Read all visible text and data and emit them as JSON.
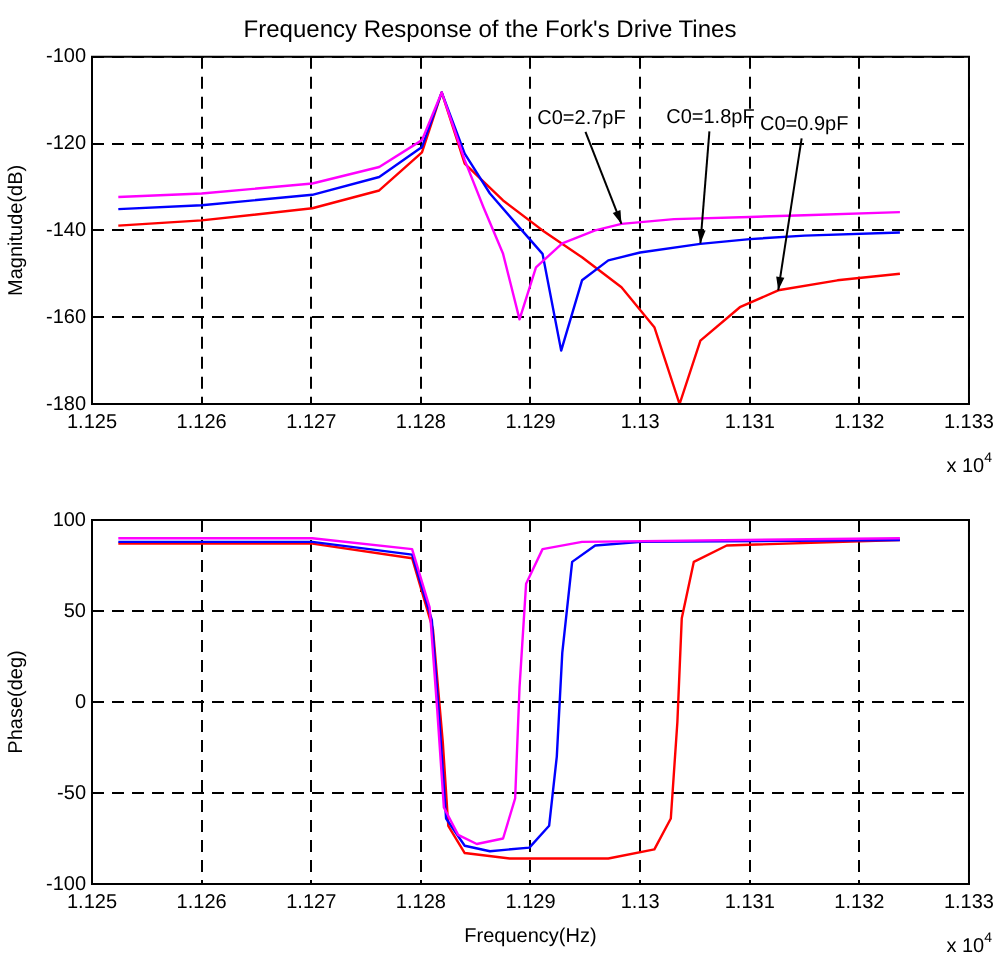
{
  "chart_data": [
    {
      "type": "line",
      "title": "Frequency Response of the Fork's Drive Tines",
      "ylabel": "Magnitude(dB)",
      "xlim": [
        1.125,
        1.133
      ],
      "xticks": [
        1.125,
        1.126,
        1.127,
        1.128,
        1.129,
        1.13,
        1.131,
        1.132,
        1.133
      ],
      "ylim": [
        -180,
        -100
      ],
      "yticks": [
        -180,
        -160,
        -140,
        -120,
        -100
      ],
      "grid": true,
      "legend": false,
      "marker": "none",
      "line_style": "solid",
      "series": [
        {
          "color": "#ff0000",
          "x": [
            1.12524,
            1.126,
            1.12701,
            1.12762,
            1.12801,
            1.12819,
            1.1284,
            1.12875,
            1.12911,
            1.12947,
            1.12983,
            1.13013,
            1.13036,
            1.13055,
            1.13091,
            1.13126,
            1.1318,
            1.13237
          ],
          "values": [
            -138.9,
            -137.7,
            -134.9,
            -130.8,
            -122,
            -108.2,
            -124.6,
            -133.1,
            -140,
            -146.2,
            -153.1,
            -162.3,
            -180,
            -165.4,
            -157.7,
            -153.8,
            -151.5,
            -150
          ]
        },
        {
          "color": "#0000ff",
          "x": [
            1.12524,
            1.126,
            1.12701,
            1.12762,
            1.12801,
            1.12819,
            1.1284,
            1.12863,
            1.12887,
            1.12911,
            1.12928,
            1.12947,
            1.12971,
            1.13,
            1.13055,
            1.131,
            1.1315,
            1.13237
          ],
          "values": [
            -135.1,
            -134.2,
            -131.8,
            -127.7,
            -120.8,
            -108.2,
            -122.3,
            -131.5,
            -138.5,
            -145.4,
            -167.7,
            -151.5,
            -146.9,
            -145.1,
            -143.1,
            -142,
            -141.2,
            -140.5
          ]
        },
        {
          "color": "#ff00ff",
          "x": [
            1.12524,
            1.126,
            1.12701,
            1.12762,
            1.12801,
            1.12819,
            1.1284,
            1.12857,
            1.12875,
            1.1289,
            1.12905,
            1.12929,
            1.12959,
            1.12983,
            1.13031,
            1.131,
            1.1315,
            1.13237
          ],
          "values": [
            -132.3,
            -131.5,
            -129.2,
            -125.4,
            -119.2,
            -108.2,
            -123.8,
            -134.6,
            -145.4,
            -160.5,
            -148.5,
            -143,
            -140,
            -138.5,
            -137.4,
            -136.9,
            -136.5,
            -135.8
          ]
        }
      ],
      "annotations": [
        {
          "text": "C0=2.7pF",
          "x": 1.12983,
          "y": -138.5
        },
        {
          "text": "C0=1.8pF",
          "x": 1.13055,
          "y": -143
        },
        {
          "text": "C0=0.9pF",
          "x": 1.13126,
          "y": -153.8
        },
        "x 10$^{4}$"
      ]
    },
    {
      "type": "line",
      "xlabel": "Frequency(Hz)",
      "ylabel": "Phase(deg)",
      "xlim": [
        1.125,
        1.133
      ],
      "xticks": [
        1.125,
        1.126,
        1.127,
        1.128,
        1.129,
        1.13,
        1.131,
        1.132,
        1.133
      ],
      "ylim": [
        -100,
        100
      ],
      "yticks": [
        -100,
        -50,
        0,
        50,
        100
      ],
      "grid": true,
      "legend": false,
      "marker": "none",
      "line_style": "solid",
      "series": [
        {
          "color": "#ff0000",
          "x": [
            1.12524,
            1.12701,
            1.12792,
            1.12811,
            1.1282,
            1.12825,
            1.1284,
            1.12881,
            1.12971,
            1.13013,
            1.13028,
            1.13034,
            1.13038,
            1.13049,
            1.13079,
            1.13237
          ],
          "values": [
            87,
            87,
            79,
            40,
            -22,
            -68,
            -83,
            -86,
            -86,
            -81,
            -64,
            -11,
            46,
            77,
            86,
            89
          ]
        },
        {
          "color": "#0000ff",
          "x": [
            1.12524,
            1.12701,
            1.12792,
            1.1281,
            1.12817,
            1.12823,
            1.1284,
            1.12863,
            1.12899,
            1.12917,
            1.12924,
            1.12929,
            1.12938,
            1.12959,
            1.13001,
            1.13237
          ],
          "values": [
            88,
            88,
            81,
            45,
            -11,
            -64,
            -79,
            -82,
            -80,
            -68,
            -30,
            27,
            77,
            86,
            88,
            89
          ]
        },
        {
          "color": "#ff00ff",
          "x": [
            1.12524,
            1.12701,
            1.12792,
            1.12808,
            1.12815,
            1.12821,
            1.12834,
            1.12851,
            1.12875,
            1.12886,
            1.1289,
            1.12896,
            1.12911,
            1.12947,
            1.13237
          ],
          "values": [
            90,
            90,
            84,
            52,
            -5,
            -58,
            -73,
            -78,
            -75,
            -53,
            8,
            65,
            84,
            88,
            90
          ]
        }
      ],
      "annotations": [
        "x 10$^{4}$"
      ]
    }
  ]
}
